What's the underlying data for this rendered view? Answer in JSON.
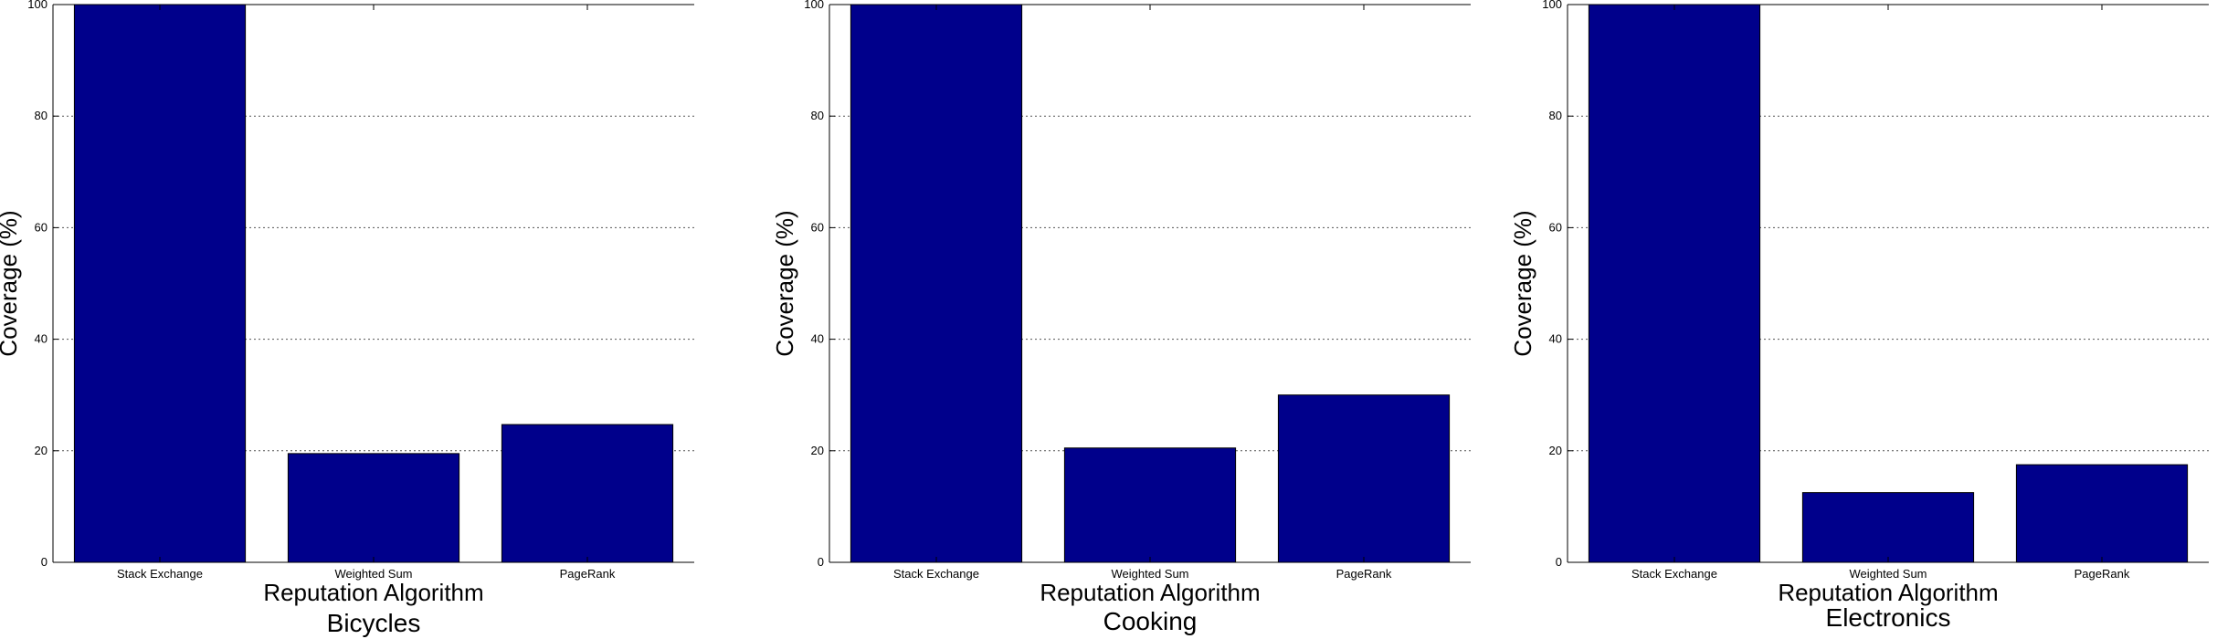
{
  "bar_color": "#00008b",
  "grid_color": "#555555",
  "chart_data": [
    {
      "type": "bar",
      "title": "Bicycles",
      "xlabel": "Reputation Algorithm",
      "ylabel": "Coverage (%)",
      "categories": [
        "Stack Exchange",
        "Weighted Sum",
        "PageRank"
      ],
      "values": [
        100,
        19.5,
        24.7
      ],
      "ylim": [
        0,
        100
      ],
      "yticks": [
        "0",
        "20",
        "40",
        "60",
        "80",
        "100"
      ],
      "grid": true
    },
    {
      "type": "bar",
      "title": "Cooking",
      "xlabel": "Reputation Algorithm",
      "ylabel": "Coverage (%)",
      "categories": [
        "Stack Exchange",
        "Weighted Sum",
        "PageRank"
      ],
      "values": [
        100,
        20.5,
        30
      ],
      "ylim": [
        0,
        100
      ],
      "yticks": [
        "0",
        "20",
        "40",
        "60",
        "80",
        "100"
      ],
      "grid": true
    },
    {
      "type": "bar",
      "title": "Electronics",
      "xlabel": "Reputation Algorithm",
      "ylabel": "Coverage (%)",
      "categories": [
        "Stack Exchange",
        "Weighted Sum",
        "PageRank"
      ],
      "values": [
        100,
        12.5,
        17.5
      ],
      "ylim": [
        0,
        100
      ],
      "yticks": [
        "0",
        "20",
        "40",
        "60",
        "80",
        "100"
      ],
      "grid": true
    }
  ]
}
